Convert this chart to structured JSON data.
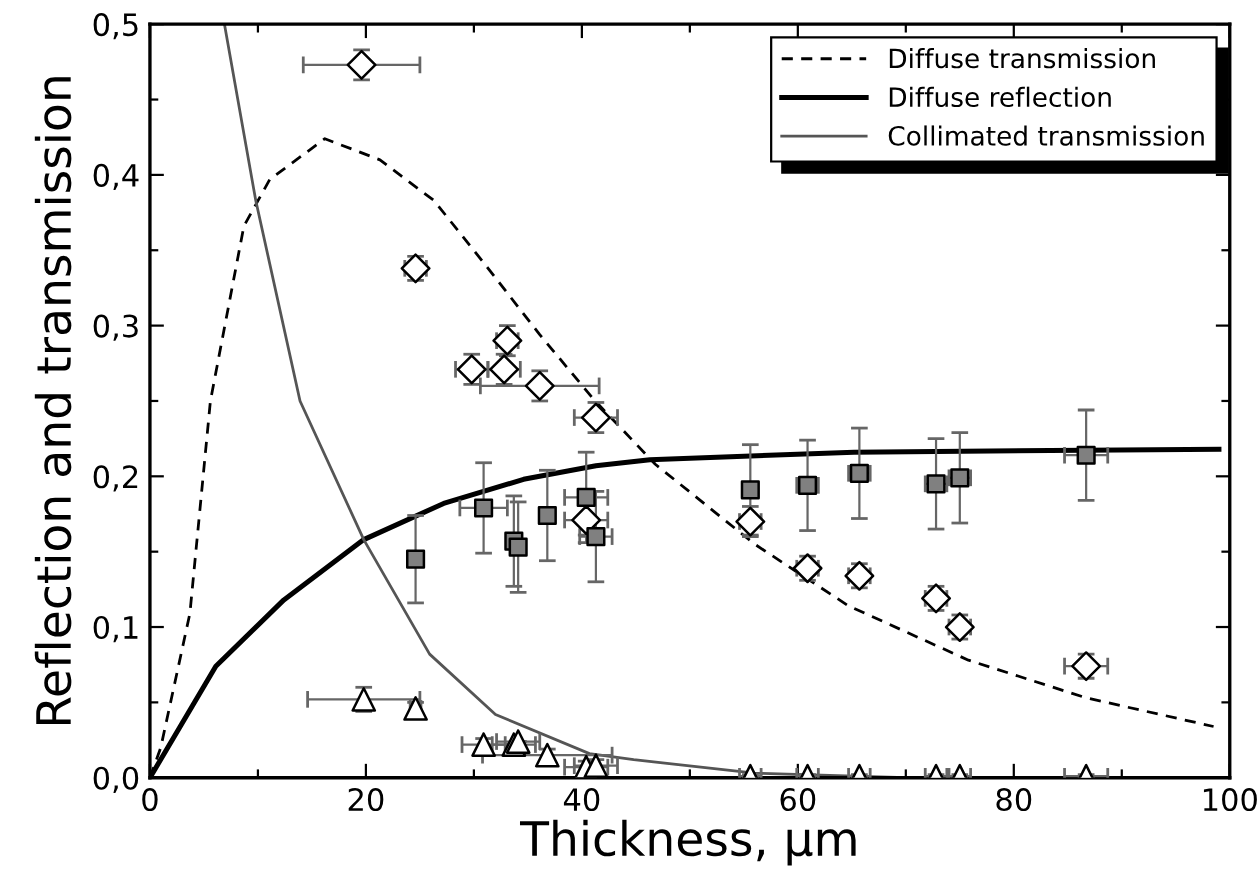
{
  "chart_data": {
    "type": "line",
    "xlabel": "Thickness, µm",
    "ylabel": "Reflection and transmission",
    "xlim": [
      0,
      100
    ],
    "ylim": [
      0,
      0.5
    ],
    "xticks": [
      0,
      {
        "value": 10,
        "label": null
      },
      20,
      {
        "value": 30,
        "label": null
      },
      40,
      {
        "value": 50,
        "label": null
      },
      60,
      {
        "value": 70,
        "label": null
      },
      80,
      {
        "value": 90,
        "label": null
      },
      100
    ],
    "yticks": [
      {
        "value": 0,
        "label": "0,0"
      },
      {
        "value": 0.05,
        "label": null
      },
      {
        "value": 0.1,
        "label": "0,1"
      },
      {
        "value": 0.15,
        "label": null
      },
      {
        "value": 0.2,
        "label": "0,2"
      },
      {
        "value": 0.25,
        "label": null
      },
      {
        "value": 0.3,
        "label": "0,3"
      },
      {
        "value": 0.35,
        "label": null
      },
      {
        "value": 0.4,
        "label": "0,4"
      },
      {
        "value": 0.45,
        "label": null
      },
      {
        "value": 0.5,
        "label": "0,5"
      }
    ],
    "grid": false,
    "legend": "top right",
    "series": [
      {
        "name": "Diffuse transmission",
        "color": "#000000",
        "line_style": "dashed",
        "marker": "none",
        "x": [
          0,
          1,
          3.7,
          5.6,
          8.7,
          11.1,
          16.2,
          21.3,
          26.3,
          31.1,
          36.1,
          41.1,
          46.8,
          56,
          64.7,
          75.8,
          86.7,
          98.5
        ],
        "values": [
          0,
          0.02,
          0.109,
          0.25,
          0.366,
          0.397,
          0.424,
          0.41,
          0.383,
          0.34,
          0.294,
          0.251,
          0.208,
          0.155,
          0.114,
          0.078,
          0.053,
          0.034
        ]
      },
      {
        "name": "Diffuse reflection",
        "color": "#000000",
        "line_style": "solid",
        "marker": "none",
        "x": [
          0,
          6.1,
          12.4,
          19.8,
          27.2,
          34.6,
          41.3,
          46.3,
          65.2,
          99
        ],
        "values": [
          0,
          0.074,
          0.118,
          0.158,
          0.182,
          0.198,
          0.207,
          0.211,
          0.216,
          0.218
        ]
      },
      {
        "name": "Collimated transmission",
        "color": "#555555",
        "line_style": "solid",
        "marker": "none",
        "x": [
          6.9,
          9.8,
          13.9,
          19.8,
          25.9,
          32,
          40.7,
          44.8,
          56,
          70,
          99
        ],
        "values": [
          0.5,
          0.383,
          0.25,
          0.158,
          0.082,
          0.042,
          0.016,
          0.012,
          0.003,
          0,
          0
        ]
      },
      {
        "type": "scatter",
        "color": "#ffffff",
        "marker": "diamond",
        "x": [
          19.6,
          24.6,
          33.1,
          29.8,
          32.8,
          36.1,
          41.3,
          40.4,
          55.6,
          60.9,
          65.7,
          72.8,
          75,
          86.7
        ],
        "values": [
          0.473,
          0.338,
          0.29,
          0.271,
          0.271,
          0.26,
          0.239,
          0.171,
          0.17,
          0.139,
          0.134,
          0.119,
          0.1,
          0.074
        ],
        "errors": [
          0.01,
          0.008,
          0.01,
          0.01,
          0.01,
          0.01,
          0.01,
          0.01,
          0.01,
          0.008,
          0.008,
          0.008,
          0.008,
          0.008
        ],
        "xerrors": [
          5.4,
          1,
          1,
          1.5,
          1.5,
          5.5,
          2,
          2,
          1,
          1,
          1,
          1,
          1,
          2
        ]
      },
      {
        "type": "scatter",
        "color": "#808080",
        "marker": "square",
        "x": [
          24.6,
          30.9,
          33.7,
          34.1,
          36.8,
          40.4,
          41.3,
          55.6,
          60.9,
          65.7,
          72.8,
          75,
          86.7
        ],
        "values": [
          0.145,
          0.179,
          0.157,
          0.153,
          0.174,
          0.186,
          0.16,
          0.191,
          0.194,
          0.202,
          0.195,
          0.199,
          0.214
        ],
        "errors": [
          0.029,
          0.03,
          0.03,
          0.03,
          0.03,
          0.03,
          0.03,
          0.03,
          0.03,
          0.03,
          0.03,
          0.03,
          0.03
        ],
        "xerrors": [
          0.5,
          2.2,
          0.5,
          0.5,
          0.5,
          2,
          1.5,
          0.5,
          1,
          1,
          1,
          1,
          2
        ]
      },
      {
        "type": "scatter",
        "color": "#ffffff",
        "marker": "triangle",
        "x": [
          19.8,
          24.6,
          30.9,
          33.7,
          34.1,
          36.8,
          40.4,
          41.3,
          55.6,
          60.9,
          65.7,
          72.8,
          75,
          86.7
        ],
        "values": [
          0.052,
          0.046,
          0.022,
          0.022,
          0.024,
          0.015,
          0.007,
          0.008,
          0.001,
          0.001,
          0.001,
          0.001,
          0.001,
          0.001
        ],
        "errors": [
          0.008,
          0.004,
          0.004,
          null,
          null,
          0.004,
          0.004,
          0.004,
          0.001,
          0.001,
          0.001,
          0.001,
          0.001,
          0.001
        ],
        "xerrors": [
          5.2,
          0.5,
          2,
          2,
          2,
          6,
          2,
          2,
          1,
          1,
          1,
          1,
          1,
          2
        ]
      }
    ]
  }
}
